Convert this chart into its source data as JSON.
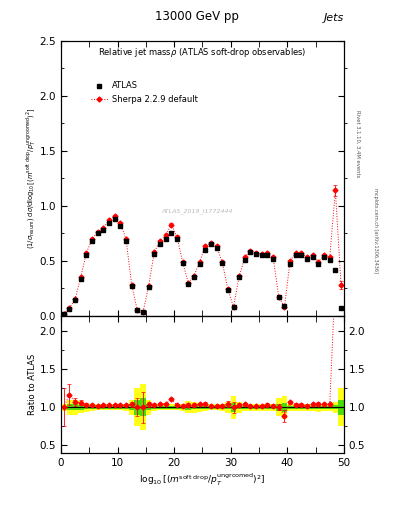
{
  "title_top": "13000 GeV pp",
  "title_right": "Jets",
  "plot_title": "Relative jet massρ (ATLAS soft-drop observables)",
  "ylabel_main": "(1/σ_resum) dσ/d log_{10}[(m^{soft drop}/p_T^{ungroomed})^2]",
  "ylabel_ratio": "Ratio to ATLAS",
  "xlabel": "log_{10}[(m^{soft drop}/p_T^{ungroomed})^2]",
  "watermark": "ATLAS_2019_I1772444",
  "rivet_label": "Rivet 3.1.10, 3.4M events",
  "mcplots_label": "mcplots.cern.ch [arXiv:1306.3436]",
  "atlas_x": [
    0.5,
    1.5,
    2.5,
    3.5,
    4.5,
    5.5,
    6.5,
    7.5,
    8.5,
    9.5,
    10.5,
    11.5,
    12.5,
    13.5,
    14.5,
    15.5,
    16.5,
    17.5,
    18.5,
    19.5,
    20.5,
    21.5,
    22.5,
    23.5,
    24.5,
    25.5,
    26.5,
    27.5,
    28.5,
    29.5,
    30.5,
    31.5,
    32.5,
    33.5,
    34.5,
    35.5,
    36.5,
    37.5,
    38.5,
    39.5,
    40.5,
    41.5,
    42.5,
    43.5,
    44.5,
    45.5,
    46.5,
    47.5,
    48.5,
    49.5
  ],
  "atlas_y": [
    0.02,
    0.06,
    0.14,
    0.33,
    0.55,
    0.68,
    0.75,
    0.78,
    0.84,
    0.88,
    0.82,
    0.68,
    0.27,
    0.05,
    0.03,
    0.26,
    0.56,
    0.65,
    0.7,
    0.75,
    0.7,
    0.48,
    0.29,
    0.35,
    0.47,
    0.6,
    0.65,
    0.62,
    0.48,
    0.23,
    0.08,
    0.35,
    0.51,
    0.58,
    0.56,
    0.55,
    0.55,
    0.52,
    0.17,
    0.09,
    0.47,
    0.55,
    0.55,
    0.52,
    0.53,
    0.47,
    0.53,
    0.51,
    0.42,
    0.07
  ],
  "atlas_yerr": [
    0.005,
    0.01,
    0.01,
    0.015,
    0.015,
    0.015,
    0.015,
    0.015,
    0.015,
    0.015,
    0.015,
    0.015,
    0.01,
    0.01,
    0.01,
    0.01,
    0.015,
    0.015,
    0.015,
    0.015,
    0.015,
    0.015,
    0.01,
    0.01,
    0.01,
    0.015,
    0.015,
    0.015,
    0.015,
    0.01,
    0.01,
    0.01,
    0.015,
    0.015,
    0.015,
    0.015,
    0.015,
    0.015,
    0.01,
    0.01,
    0.015,
    0.015,
    0.015,
    0.015,
    0.015,
    0.015,
    0.015,
    0.015,
    0.015,
    0.01
  ],
  "sherpa_x": [
    0.5,
    1.5,
    2.5,
    3.5,
    4.5,
    5.5,
    6.5,
    7.5,
    8.5,
    9.5,
    10.5,
    11.5,
    12.5,
    13.5,
    14.5,
    15.5,
    16.5,
    17.5,
    18.5,
    19.5,
    20.5,
    21.5,
    22.5,
    23.5,
    24.5,
    25.5,
    26.5,
    27.5,
    28.5,
    29.5,
    30.5,
    31.5,
    32.5,
    33.5,
    34.5,
    35.5,
    36.5,
    37.5,
    38.5,
    39.5,
    40.5,
    41.5,
    42.5,
    43.5,
    44.5,
    45.5,
    46.5,
    47.5,
    48.5,
    49.5
  ],
  "sherpa_y": [
    0.02,
    0.07,
    0.15,
    0.35,
    0.57,
    0.7,
    0.76,
    0.8,
    0.87,
    0.91,
    0.84,
    0.7,
    0.28,
    0.05,
    0.03,
    0.27,
    0.58,
    0.68,
    0.73,
    0.83,
    0.72,
    0.49,
    0.3,
    0.36,
    0.49,
    0.63,
    0.66,
    0.63,
    0.49,
    0.24,
    0.08,
    0.36,
    0.53,
    0.59,
    0.57,
    0.56,
    0.57,
    0.53,
    0.17,
    0.08,
    0.5,
    0.57,
    0.57,
    0.53,
    0.55,
    0.49,
    0.55,
    0.53,
    1.14,
    0.28
  ],
  "sherpa_yerr": [
    0.005,
    0.008,
    0.008,
    0.01,
    0.01,
    0.01,
    0.01,
    0.01,
    0.01,
    0.01,
    0.01,
    0.01,
    0.008,
    0.006,
    0.006,
    0.008,
    0.01,
    0.01,
    0.01,
    0.01,
    0.01,
    0.01,
    0.008,
    0.008,
    0.008,
    0.01,
    0.01,
    0.01,
    0.01,
    0.008,
    0.006,
    0.008,
    0.01,
    0.01,
    0.01,
    0.01,
    0.01,
    0.01,
    0.007,
    0.007,
    0.01,
    0.01,
    0.01,
    0.01,
    0.01,
    0.01,
    0.01,
    0.01,
    0.05,
    0.04
  ],
  "atlas_band_y": [
    0.05,
    0.1,
    0.1,
    0.08,
    0.06,
    0.05,
    0.04,
    0.04,
    0.04,
    0.04,
    0.04,
    0.05,
    0.1,
    0.25,
    0.3,
    0.1,
    0.05,
    0.04,
    0.04,
    0.04,
    0.04,
    0.05,
    0.08,
    0.07,
    0.06,
    0.05,
    0.04,
    0.04,
    0.05,
    0.07,
    0.15,
    0.07,
    0.05,
    0.05,
    0.05,
    0.05,
    0.05,
    0.05,
    0.12,
    0.15,
    0.05,
    0.05,
    0.05,
    0.05,
    0.05,
    0.06,
    0.05,
    0.05,
    0.07,
    0.25
  ],
  "xlim": [
    0,
    50
  ],
  "ylim_main": [
    0,
    2.5
  ],
  "ylim_ratio": [
    0.4,
    2.2
  ],
  "yticks_main": [
    0,
    0.5,
    1.0,
    1.5,
    2.0,
    2.5
  ],
  "yticks_ratio": [
    0.5,
    1.0,
    1.5,
    2.0
  ],
  "xticks": [
    0,
    10,
    20,
    30,
    40,
    50
  ]
}
